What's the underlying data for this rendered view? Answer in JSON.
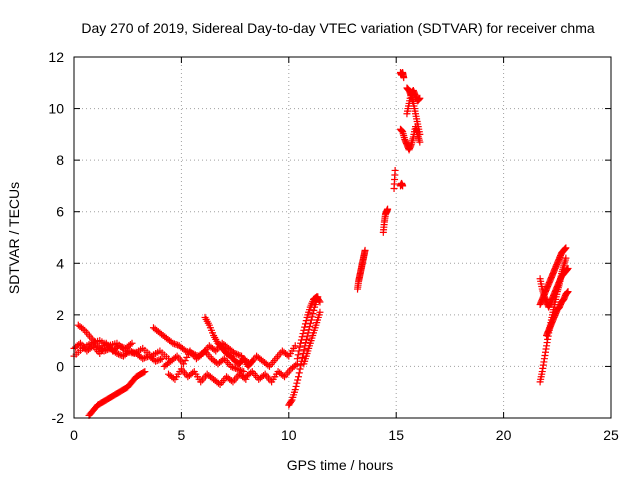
{
  "chart_data": {
    "type": "scatter",
    "title": "Day 270 of 2019, Sidereal Day-to-day VTEC variation (SDTVAR) for receiver chma",
    "xlabel": "GPS time / hours",
    "ylabel": "SDTVAR / TECUs",
    "xlim": [
      0,
      25
    ],
    "ylim": [
      -2,
      12
    ],
    "xticks": [
      0,
      5,
      10,
      15,
      20,
      25
    ],
    "yticks": [
      -2,
      0,
      2,
      4,
      6,
      8,
      10,
      12
    ],
    "xtick_labels": [
      "0",
      "5",
      "10",
      "15",
      "20",
      "25"
    ],
    "ytick_labels": [
      "-2",
      "0",
      "2",
      "4",
      "6",
      "8",
      "10",
      "12"
    ],
    "grid": true,
    "marker": "plus",
    "color": "#ff0000",
    "series": [
      {
        "name": "SDTVAR",
        "segments": [
          {
            "x": [
              0.0,
              0.3,
              0.6,
              0.9,
              1.2,
              1.5,
              1.8,
              2.1,
              2.4,
              2.7
            ],
            "y": [
              0.7,
              0.9,
              0.6,
              0.8,
              0.5,
              0.9,
              0.6,
              0.8,
              0.7,
              0.9
            ]
          },
          {
            "x": [
              0.0,
              0.4,
              0.8,
              1.2,
              1.6,
              2.0,
              2.4,
              2.8,
              3.2,
              3.6,
              4.0,
              4.4
            ],
            "y": [
              0.4,
              0.7,
              0.9,
              1.0,
              0.8,
              0.9,
              0.6,
              0.5,
              0.7,
              0.4,
              0.6,
              0.3
            ]
          },
          {
            "x": [
              0.2,
              0.5,
              0.8,
              1.1,
              1.4,
              1.7,
              2.0,
              2.3,
              2.6,
              2.9,
              3.2,
              3.5,
              3.8,
              4.1
            ],
            "y": [
              1.6,
              1.4,
              1.1,
              0.8,
              0.6,
              0.7,
              0.5,
              0.4,
              0.6,
              0.5,
              0.3,
              0.4,
              0.2,
              0.3
            ]
          },
          {
            "x": [
              0.7,
              0.9,
              1.1,
              1.3,
              1.5,
              1.7,
              1.9,
              2.1,
              2.3,
              2.5,
              2.7,
              2.9,
              3.1,
              3.3
            ],
            "y": [
              -1.9,
              -1.7,
              -1.5,
              -1.4,
              -1.3,
              -1.2,
              -1.1,
              -1.0,
              -0.9,
              -0.8,
              -0.6,
              -0.4,
              -0.3,
              -0.2
            ]
          },
          {
            "x": [
              3.7,
              4.0,
              4.3,
              4.6,
              4.9,
              5.2,
              5.5,
              5.8,
              6.1,
              6.4,
              6.7,
              7.0,
              7.3,
              7.6,
              7.9
            ],
            "y": [
              1.5,
              1.3,
              1.1,
              0.9,
              0.8,
              0.6,
              0.5,
              0.4,
              0.6,
              0.3,
              0.1,
              0.3,
              0.0,
              -0.1,
              -0.2
            ]
          },
          {
            "x": [
              4.2,
              4.5,
              4.8,
              5.1,
              5.4,
              5.7,
              6.0,
              6.3,
              6.6,
              6.9,
              7.2,
              7.5,
              7.8
            ],
            "y": [
              0.0,
              0.2,
              0.4,
              0.1,
              0.6,
              0.3,
              0.5,
              0.8,
              0.6,
              0.9,
              0.7,
              0.5,
              0.4
            ]
          },
          {
            "x": [
              4.4,
              4.7,
              5.0,
              5.3,
              5.6,
              5.9,
              6.2,
              6.5,
              6.8,
              7.1,
              7.4,
              7.7,
              8.0
            ],
            "y": [
              -0.3,
              -0.5,
              -0.1,
              -0.4,
              -0.2,
              -0.6,
              -0.3,
              -0.5,
              -0.7,
              -0.4,
              -0.6,
              -0.3,
              -0.5
            ]
          },
          {
            "x": [
              6.1,
              6.3,
              6.5,
              6.7,
              6.9,
              7.1,
              7.3,
              7.5,
              7.7,
              7.9,
              8.1,
              8.3
            ],
            "y": [
              1.9,
              1.6,
              1.2,
              0.9,
              0.7,
              0.5,
              0.4,
              0.2,
              0.1,
              0.3,
              0.0,
              0.2
            ]
          },
          {
            "x": [
              7.9,
              8.2,
              8.5,
              8.8,
              9.1,
              9.4,
              9.7,
              10.0,
              10.3
            ],
            "y": [
              0.3,
              0.1,
              0.4,
              0.2,
              0.0,
              0.3,
              0.6,
              0.4,
              0.8
            ]
          },
          {
            "x": [
              8.0,
              8.3,
              8.6,
              8.9,
              9.2,
              9.5,
              9.8,
              10.1,
              10.4
            ],
            "y": [
              -0.4,
              -0.2,
              -0.5,
              -0.3,
              -0.6,
              -0.2,
              -0.4,
              -0.1,
              0.1
            ]
          },
          {
            "x": [
              10.0,
              10.15,
              10.3,
              10.45,
              10.6,
              10.75,
              10.9,
              11.05,
              11.2,
              11.35
            ],
            "y": [
              -1.5,
              -1.3,
              -0.9,
              -0.4,
              0.2,
              0.8,
              1.3,
              1.8,
              2.3,
              2.7
            ]
          },
          {
            "x": [
              10.4,
              10.55,
              10.7,
              10.85,
              11.0,
              11.15,
              11.3,
              11.45
            ],
            "y": [
              0.3,
              0.9,
              1.4,
              1.9,
              2.3,
              2.6,
              2.7,
              2.5
            ]
          },
          {
            "x": [
              10.7,
              10.85,
              11.0,
              11.15,
              11.3,
              11.45
            ],
            "y": [
              0.1,
              0.5,
              0.9,
              1.3,
              1.7,
              2.1
            ]
          },
          {
            "x": [
              13.2,
              13.25,
              13.3,
              13.35,
              13.4,
              13.45,
              13.5,
              13.55
            ],
            "y": [
              3.0,
              3.3,
              3.5,
              3.7,
              3.9,
              4.1,
              4.3,
              4.5
            ]
          },
          {
            "x": [
              14.4,
              14.45,
              14.5,
              14.55,
              14.6
            ],
            "y": [
              5.2,
              5.6,
              5.9,
              6.0,
              6.1
            ]
          },
          {
            "x": [
              14.9,
              14.95
            ],
            "y": [
              6.9,
              7.6
            ]
          },
          {
            "x": [
              15.2,
              15.25,
              15.3
            ],
            "y": [
              7.0,
              7.1,
              7.0
            ]
          },
          {
            "x": [
              15.2,
              15.25,
              15.3,
              15.35
            ],
            "y": [
              11.4,
              11.3,
              11.4,
              11.2
            ]
          },
          {
            "x": [
              15.2,
              15.3,
              15.4,
              15.5,
              15.6,
              15.7,
              15.8,
              15.9,
              16.0,
              16.1
            ],
            "y": [
              9.2,
              9.1,
              8.8,
              8.6,
              8.4,
              8.6,
              8.9,
              9.3,
              9.0,
              8.7
            ]
          },
          {
            "x": [
              15.5,
              15.6,
              15.7,
              15.8,
              15.9,
              16.0,
              16.1
            ],
            "y": [
              10.8,
              10.7,
              10.5,
              10.2,
              9.8,
              9.4,
              9.0
            ]
          },
          {
            "x": [
              15.5,
              15.6,
              15.7,
              15.8,
              15.9,
              16.0,
              16.1
            ],
            "y": [
              9.8,
              10.2,
              10.6,
              10.7,
              10.5,
              10.3,
              10.4
            ]
          },
          {
            "x": [
              21.7,
              21.8,
              21.9,
              22.0,
              22.1,
              22.2,
              22.3,
              22.4,
              22.5,
              22.6,
              22.7,
              22.8,
              22.9
            ],
            "y": [
              -0.6,
              -0.2,
              0.3,
              0.8,
              1.3,
              1.7,
              2.1,
              2.5,
              2.9,
              3.2,
              3.6,
              3.9,
              4.2
            ]
          },
          {
            "x": [
              21.7,
              21.8,
              21.9,
              22.0,
              22.1,
              22.2,
              22.3,
              22.4,
              22.5,
              22.6,
              22.7,
              22.8,
              22.9
            ],
            "y": [
              2.4,
              2.6,
              2.8,
              3.0,
              3.2,
              3.4,
              3.6,
              3.8,
              4.0,
              4.2,
              4.4,
              4.5,
              4.6
            ]
          },
          {
            "x": [
              21.7,
              21.8,
              21.9,
              22.0,
              22.1,
              22.2,
              22.3,
              22.4,
              22.5,
              22.6,
              22.7,
              22.8,
              22.9,
              23.0
            ],
            "y": [
              3.4,
              3.0,
              2.7,
              2.5,
              2.3,
              2.5,
              2.7,
              2.9,
              3.1,
              3.3,
              3.5,
              3.6,
              3.7,
              3.8
            ]
          },
          {
            "x": [
              22.0,
              22.1,
              22.2,
              22.3,
              22.4,
              22.5,
              22.6,
              22.7,
              22.8,
              22.9,
              23.0
            ],
            "y": [
              1.2,
              1.4,
              1.6,
              1.8,
              2.0,
              2.2,
              2.3,
              2.5,
              2.6,
              2.8,
              2.9
            ]
          }
        ]
      }
    ]
  }
}
